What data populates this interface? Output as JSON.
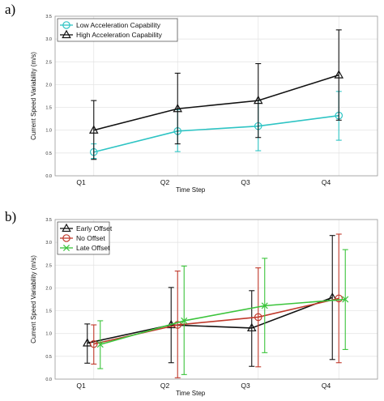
{
  "panels": [
    {
      "panel_label": "a)",
      "chart_data": {
        "type": "line",
        "categories": [
          "Q1",
          "Q2",
          "Q3",
          "Q4"
        ],
        "xlabel": "Time Step",
        "ylabel": "Current Speed Variability (m/s)",
        "ylim": [
          0,
          3.5
        ],
        "yticks": [
          "0.0",
          "0.5",
          "1.0",
          "1.5",
          "2.0",
          "2.5",
          "3.0",
          "3.5"
        ],
        "grid": true,
        "legend_position": "top-left",
        "series": [
          {
            "name": "Low Acceleration Capability",
            "color": "#2ec4c4",
            "marker": "circle",
            "values": [
              0.52,
              0.98,
              1.09,
              1.32
            ],
            "err_low": [
              0.38,
              0.53,
              0.55,
              0.78
            ],
            "err_high": [
              0.7,
              1.45,
              1.65,
              1.85
            ]
          },
          {
            "name": "High Acceleration Capability",
            "color": "#111111",
            "marker": "triangle",
            "values": [
              1.0,
              1.47,
              1.65,
              2.21
            ],
            "err_low": [
              0.36,
              0.7,
              0.84,
              1.22
            ],
            "err_high": [
              1.65,
              2.25,
              2.46,
              3.2
            ]
          }
        ]
      }
    },
    {
      "panel_label": "b)",
      "chart_data": {
        "type": "line",
        "categories": [
          "Q1",
          "Q2",
          "Q3",
          "Q4"
        ],
        "xlabel": "Time Step",
        "ylabel": "Current Speed Variability (m/s)",
        "ylim": [
          0,
          3.5
        ],
        "yticks": [
          "0.0",
          "0.5",
          "1.0",
          "1.5",
          "2.0",
          "2.5",
          "3.0",
          "3.5"
        ],
        "grid": true,
        "legend_position": "top-left",
        "series": [
          {
            "name": "Early Offset",
            "color": "#111111",
            "marker": "triangle",
            "values": [
              0.79,
              1.19,
              1.12,
              1.79
            ],
            "err_low": [
              0.35,
              0.36,
              0.28,
              0.43
            ],
            "err_high": [
              1.21,
              2.01,
              1.94,
              3.15
            ]
          },
          {
            "name": "No Offset",
            "color": "#c0392b",
            "marker": "circle",
            "values": [
              0.77,
              1.19,
              1.36,
              1.77
            ],
            "err_low": [
              0.33,
              0.03,
              0.27,
              0.36
            ],
            "err_high": [
              1.19,
              2.37,
              2.44,
              3.18
            ]
          },
          {
            "name": "Late Offset",
            "color": "#3cc43c",
            "marker": "cross",
            "values": [
              0.76,
              1.28,
              1.61,
              1.75
            ],
            "err_low": [
              0.23,
              0.1,
              0.58,
              0.65
            ],
            "err_high": [
              1.28,
              2.48,
              2.65,
              2.84
            ]
          }
        ]
      }
    }
  ]
}
